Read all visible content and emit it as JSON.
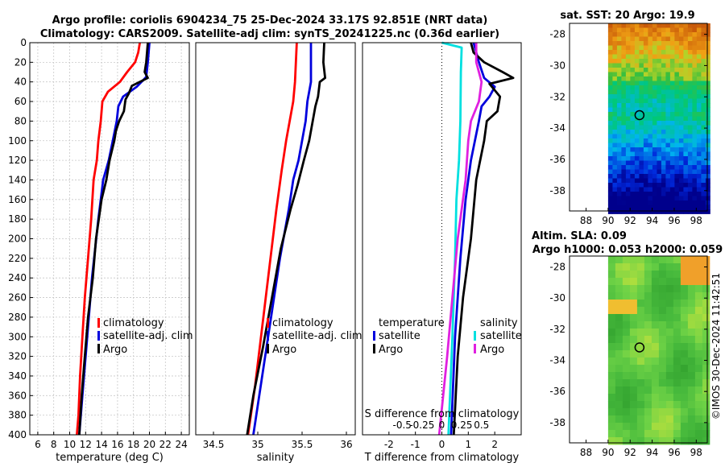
{
  "title_line1": "Argo profile: coriolis 6904234_75 25-Dec-2024 33.17S 92.851E (NRT data)",
  "title_line2": "Climatology: CARS2009. Satellite-adj clim: synTS_20241225.nc (0.36d earlier)",
  "sst_title": "sat. SST: 20 Argo: 19.9",
  "sla_title1": "Altim. SLA: 0.09",
  "sla_title2": "Argo h1000: 0.053 h2000: 0.059",
  "credit": "©IMOS 30-Dec-2024 11:42:51",
  "colors": {
    "climatology": "#ff0000",
    "satellite": "#0000dd",
    "argo": "#000000",
    "sal_sat": "#00e0e0",
    "sal_argo": "#e020e0"
  },
  "chart_data": [
    {
      "type": "line",
      "name": "temperature",
      "xlabel": "temperature (deg C)",
      "ylabel": "",
      "xlim": [
        5,
        25
      ],
      "ylim": [
        400,
        0
      ],
      "xticks": [
        6,
        8,
        10,
        12,
        14,
        16,
        18,
        20,
        22,
        24
      ],
      "yticks": [
        0,
        20,
        40,
        60,
        80,
        100,
        120,
        140,
        160,
        180,
        200,
        220,
        240,
        260,
        280,
        300,
        320,
        340,
        360,
        380,
        400
      ],
      "legend": [
        "climatology",
        "satellite-adj. clim",
        "Argo"
      ],
      "series": [
        {
          "name": "climatology",
          "color": "#ff0000",
          "points": [
            [
              18.8,
              0
            ],
            [
              18.6,
              10
            ],
            [
              18.2,
              20
            ],
            [
              17.2,
              30
            ],
            [
              16.3,
              40
            ],
            [
              14.8,
              50
            ],
            [
              14.1,
              60
            ],
            [
              13.9,
              80
            ],
            [
              13.6,
              100
            ],
            [
              13.4,
              120
            ],
            [
              13.0,
              140
            ],
            [
              12.7,
              180
            ],
            [
              12.3,
              220
            ],
            [
              11.9,
              260
            ],
            [
              11.6,
              300
            ],
            [
              11.3,
              340
            ],
            [
              11.1,
              380
            ],
            [
              10.9,
              400
            ]
          ]
        },
        {
          "name": "satellite-adj. clim",
          "color": "#0000dd",
          "points": [
            [
              20.0,
              0
            ],
            [
              19.9,
              10
            ],
            [
              19.8,
              20
            ],
            [
              19.6,
              35
            ],
            [
              18.4,
              45
            ],
            [
              16.7,
              55
            ],
            [
              16.1,
              65
            ],
            [
              15.9,
              80
            ],
            [
              15.4,
              100
            ],
            [
              14.9,
              120
            ],
            [
              14.2,
              140
            ],
            [
              13.6,
              180
            ],
            [
              12.8,
              240
            ],
            [
              12.2,
              300
            ],
            [
              11.6,
              360
            ],
            [
              11.2,
              400
            ]
          ]
        },
        {
          "name": "Argo",
          "color": "#000000",
          "points": [
            [
              19.8,
              0
            ],
            [
              19.7,
              10
            ],
            [
              19.6,
              20
            ],
            [
              19.4,
              30
            ],
            [
              19.8,
              36
            ],
            [
              17.8,
              44
            ],
            [
              17.4,
              52
            ],
            [
              17.0,
              58
            ],
            [
              16.8,
              70
            ],
            [
              16.2,
              80
            ],
            [
              15.8,
              90
            ],
            [
              15.6,
              100
            ],
            [
              15.0,
              120
            ],
            [
              14.6,
              140
            ],
            [
              14.0,
              160
            ],
            [
              13.3,
              200
            ],
            [
              12.9,
              240
            ],
            [
              12.3,
              280
            ],
            [
              11.9,
              320
            ],
            [
              11.5,
              360
            ],
            [
              11.2,
              400
            ]
          ]
        }
      ]
    },
    {
      "type": "line",
      "name": "salinity",
      "xlabel": "salinity",
      "ylabel": "",
      "xlim": [
        34.3,
        36.1
      ],
      "ylim": [
        400,
        0
      ],
      "xticks": [
        34.5,
        35,
        35.5,
        36
      ],
      "legend": [
        "climatology",
        "satellite-adj. clim",
        "Argo"
      ],
      "series": [
        {
          "name": "climatology",
          "color": "#ff0000",
          "points": [
            [
              35.44,
              0
            ],
            [
              35.43,
              20
            ],
            [
              35.42,
              40
            ],
            [
              35.4,
              60
            ],
            [
              35.36,
              80
            ],
            [
              35.32,
              100
            ],
            [
              35.27,
              130
            ],
            [
              35.21,
              170
            ],
            [
              35.13,
              230
            ],
            [
              35.05,
              290
            ],
            [
              34.97,
              350
            ],
            [
              34.89,
              400
            ]
          ]
        },
        {
          "name": "satellite-adj. clim",
          "color": "#0000dd",
          "points": [
            [
              35.6,
              0
            ],
            [
              35.6,
              20
            ],
            [
              35.6,
              40
            ],
            [
              35.56,
              60
            ],
            [
              35.54,
              80
            ],
            [
              35.5,
              100
            ],
            [
              35.46,
              120
            ],
            [
              35.4,
              140
            ],
            [
              35.35,
              170
            ],
            [
              35.25,
              220
            ],
            [
              35.15,
              280
            ],
            [
              35.05,
              340
            ],
            [
              34.95,
              400
            ]
          ]
        },
        {
          "name": "Argo",
          "color": "#000000",
          "points": [
            [
              35.75,
              0
            ],
            [
              35.74,
              20
            ],
            [
              35.76,
              36
            ],
            [
              35.7,
              40
            ],
            [
              35.68,
              55
            ],
            [
              35.65,
              65
            ],
            [
              35.62,
              80
            ],
            [
              35.58,
              100
            ],
            [
              35.52,
              120
            ],
            [
              35.45,
              145
            ],
            [
              35.37,
              170
            ],
            [
              35.26,
              210
            ],
            [
              35.16,
              260
            ],
            [
              35.06,
              310
            ],
            [
              34.95,
              360
            ],
            [
              34.88,
              400
            ]
          ]
        }
      ]
    },
    {
      "type": "line",
      "name": "difference from climatology",
      "xlabel": "T difference from climatology",
      "x2label": "S difference from climatology",
      "xlim": [
        -3,
        3
      ],
      "ylim": [
        400,
        0
      ],
      "xticks": [
        -2,
        -1,
        0,
        1,
        2
      ],
      "x2ticks": [
        -0.5,
        -0.25,
        0,
        0.25,
        0.5
      ],
      "x2tick_labels": [
        "-0.5",
        "-0.25",
        "0",
        "0.25",
        "0.5"
      ],
      "zero_line": "dotted",
      "legend": [
        "temperature satellite",
        "temperature Argo",
        "salinity satellite",
        "salinity Argo"
      ],
      "legend_headers": [
        "temperature",
        "salinity"
      ],
      "legend_labels": [
        "satellite",
        "Argo",
        "satellite",
        "Argo"
      ],
      "series": [
        {
          "name": "temperature satellite",
          "color": "#0000dd",
          "points": [
            [
              1.2,
              0
            ],
            [
              1.3,
              10
            ],
            [
              1.4,
              20
            ],
            [
              1.6,
              36
            ],
            [
              2.0,
              45
            ],
            [
              1.8,
              55
            ],
            [
              1.5,
              65
            ],
            [
              1.4,
              80
            ],
            [
              1.1,
              120
            ],
            [
              0.9,
              160
            ],
            [
              0.7,
              220
            ],
            [
              0.5,
              300
            ],
            [
              0.35,
              400
            ]
          ]
        },
        {
          "name": "temperature Argo",
          "color": "#000000",
          "points": [
            [
              1.1,
              0
            ],
            [
              1.2,
              10
            ],
            [
              1.6,
              20
            ],
            [
              2.3,
              30
            ],
            [
              2.7,
              36
            ],
            [
              1.8,
              42
            ],
            [
              2.2,
              55
            ],
            [
              2.1,
              70
            ],
            [
              1.7,
              80
            ],
            [
              1.6,
              100
            ],
            [
              1.3,
              140
            ],
            [
              1.1,
              200
            ],
            [
              0.8,
              260
            ],
            [
              0.6,
              320
            ],
            [
              0.45,
              400
            ]
          ]
        },
        {
          "name": "salinity satellite",
          "color": "#00e0e0",
          "points": [
            [
              0.0,
              0
            ],
            [
              0.75,
              5
            ],
            [
              0.72,
              30
            ],
            [
              0.7,
              80
            ],
            [
              0.65,
              120
            ],
            [
              0.55,
              160
            ],
            [
              0.5,
              220
            ],
            [
              0.4,
              300
            ],
            [
              0.25,
              400
            ]
          ]
        },
        {
          "name": "salinity Argo",
          "color": "#e020e0",
          "points": [
            [
              1.3,
              0
            ],
            [
              1.3,
              20
            ],
            [
              1.5,
              40
            ],
            [
              1.4,
              60
            ],
            [
              1.1,
              80
            ],
            [
              1.0,
              100
            ],
            [
              0.9,
              140
            ],
            [
              0.6,
              200
            ],
            [
              0.4,
              260
            ],
            [
              0.2,
              320
            ],
            [
              -0.1,
              400
            ]
          ]
        }
      ]
    },
    {
      "type": "heatmap",
      "name": "sat. SST",
      "xticks": [
        88,
        90,
        92,
        94,
        96,
        98
      ],
      "yticks": [
        -28,
        -30,
        -32,
        -34,
        -36,
        -38
      ],
      "xlim": [
        86.5,
        99
      ],
      "ylim": [
        -27.3,
        -39.3
      ],
      "argo_position": [
        92.85,
        -33.17
      ]
    },
    {
      "type": "heatmap",
      "name": "Altim. SLA",
      "xticks": [
        88,
        90,
        92,
        94,
        96,
        98
      ],
      "yticks": [
        -28,
        -30,
        -32,
        -34,
        -36,
        -38
      ],
      "xlim": [
        86.5,
        99
      ],
      "ylim": [
        -27.3,
        -39.3
      ],
      "argo_position": [
        92.85,
        -33.17
      ]
    }
  ]
}
